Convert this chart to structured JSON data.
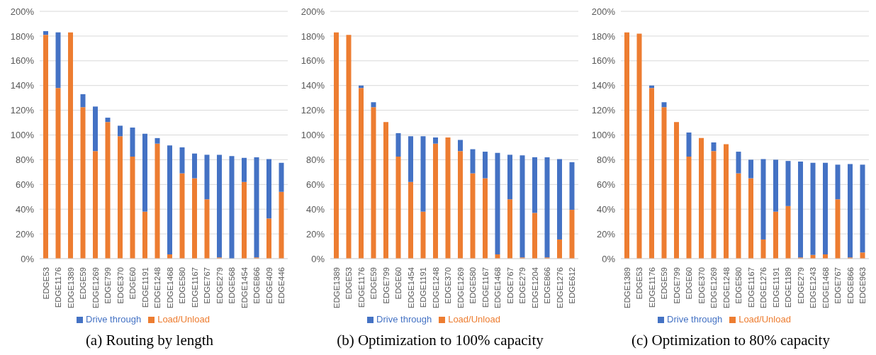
{
  "chart_data": [
    {
      "type": "bar",
      "title": "(a) Routing by length",
      "stacked": true,
      "grid": "y",
      "legend": "bottom",
      "categories": [
        "EDGE53",
        "EDGE1176",
        "EDGE1389",
        "EDGE59",
        "EDGE1269",
        "EDGE799",
        "EDGE370",
        "EDGE60",
        "EDGE1191",
        "EDGE1248",
        "EDGE1468",
        "EDGE580",
        "EDGE1167",
        "EDGE767",
        "EDGE279",
        "EDGE568",
        "EDGE1454",
        "EDGE866",
        "EDGE409",
        "EDGE446"
      ],
      "series": [
        {
          "name": "Load/Unload",
          "color": "#ed7d31",
          "values": [
            181,
            138,
            183,
            122.5,
            87,
            110.5,
            99,
            82.5,
            38,
            93,
            3.5,
            69,
            65,
            48,
            1,
            0,
            62,
            1,
            32.5,
            54
          ]
        },
        {
          "name": "Drive through",
          "color": "#4472c4",
          "values": [
            3,
            45,
            0,
            10.5,
            36,
            3.5,
            8.5,
            23.5,
            63,
            4.5,
            88,
            21,
            20,
            36,
            83,
            83,
            19.5,
            81,
            48,
            23.5
          ]
        }
      ],
      "ylim": [
        0,
        200
      ],
      "yticks": [
        {
          "value": 0,
          "label": "0%"
        },
        {
          "value": 20,
          "label": "20%"
        },
        {
          "value": 40,
          "label": "40%"
        },
        {
          "value": 60,
          "label": "60%"
        },
        {
          "value": 80,
          "label": "80%"
        },
        {
          "value": 100,
          "label": "100%"
        },
        {
          "value": 120,
          "label": "120%"
        },
        {
          "value": 140,
          "label": "140%"
        },
        {
          "value": 160,
          "label": "160%"
        },
        {
          "value": 180,
          "label": "180%"
        },
        {
          "value": 200,
          "label": "200%"
        }
      ]
    },
    {
      "type": "bar",
      "title": "(b) Optimization to 100% capacity",
      "stacked": true,
      "grid": "y",
      "legend": "bottom",
      "categories": [
        "EDGE1389",
        "EDGE53",
        "EDGE1176",
        "EDGE59",
        "EDGE799",
        "EDGE60",
        "EDGE1454",
        "EDGE1191",
        "EDGE1248",
        "EDGE370",
        "EDGE1269",
        "EDGE580",
        "EDGE1167",
        "EDGE1468",
        "EDGE767",
        "EDGE279",
        "EDGE1204",
        "EDGE866",
        "EDGE1276",
        "EDGE612"
      ],
      "series": [
        {
          "name": "Load/Unload",
          "color": "#ed7d31",
          "values": [
            183,
            181,
            138,
            122.5,
            110.5,
            82.5,
            62,
            38,
            93,
            98,
            87,
            69,
            65,
            3.5,
            48,
            1,
            37,
            1,
            15.5,
            39.5
          ]
        },
        {
          "name": "Drive through",
          "color": "#4472c4",
          "values": [
            0,
            0,
            2,
            4,
            0,
            19,
            37,
            61,
            5,
            0,
            9,
            19.5,
            21.5,
            82,
            36,
            82.5,
            45,
            81,
            65,
            38.5
          ]
        }
      ],
      "ylim": [
        0,
        200
      ],
      "yticks": [
        {
          "value": 0,
          "label": "0%"
        },
        {
          "value": 20,
          "label": "20%"
        },
        {
          "value": 40,
          "label": "40%"
        },
        {
          "value": 60,
          "label": "60%"
        },
        {
          "value": 80,
          "label": "80%"
        },
        {
          "value": 100,
          "label": "100%"
        },
        {
          "value": 120,
          "label": "120%"
        },
        {
          "value": 140,
          "label": "140%"
        },
        {
          "value": 160,
          "label": "160%"
        },
        {
          "value": 180,
          "label": "180%"
        },
        {
          "value": 200,
          "label": "200%"
        }
      ]
    },
    {
      "type": "bar",
      "title": "(c) Optimization to 80% capacity",
      "stacked": true,
      "grid": "y",
      "legend": "bottom",
      "categories": [
        "EDGE1389",
        "EDGE53",
        "EDGE1176",
        "EDGE59",
        "EDGE799",
        "EDGE60",
        "EDGE370",
        "EDGE1269",
        "EDGE1248",
        "EDGE580",
        "EDGE1167",
        "EDGE1276",
        "EDGE1191",
        "EDGE1189",
        "EDGE279",
        "EDGE1243",
        "EDGE1468",
        "EDGE767",
        "EDGE866",
        "EDGE963"
      ],
      "series": [
        {
          "name": "Load/Unload",
          "color": "#ed7d31",
          "values": [
            183,
            182,
            138,
            122.5,
            110.5,
            82.5,
            97.5,
            87,
            92.5,
            69,
            65,
            15.5,
            38,
            42.5,
            1,
            3,
            3.5,
            48,
            1,
            5
          ]
        },
        {
          "name": "Drive through",
          "color": "#4472c4",
          "values": [
            0,
            0,
            2,
            4,
            0,
            19.5,
            0,
            7,
            0,
            17.5,
            15,
            65,
            42,
            36.5,
            77.5,
            74.5,
            74,
            28,
            75.5,
            71
          ]
        }
      ],
      "ylim": [
        0,
        200
      ],
      "yticks": [
        {
          "value": 0,
          "label": "0%"
        },
        {
          "value": 20,
          "label": "20%"
        },
        {
          "value": 40,
          "label": "40%"
        },
        {
          "value": 60,
          "label": "60%"
        },
        {
          "value": 80,
          "label": "80%"
        },
        {
          "value": 100,
          "label": "100%"
        },
        {
          "value": 120,
          "label": "120%"
        },
        {
          "value": 140,
          "label": "140%"
        },
        {
          "value": 160,
          "label": "160%"
        },
        {
          "value": 180,
          "label": "180%"
        },
        {
          "value": 200,
          "label": "200%"
        }
      ]
    }
  ]
}
